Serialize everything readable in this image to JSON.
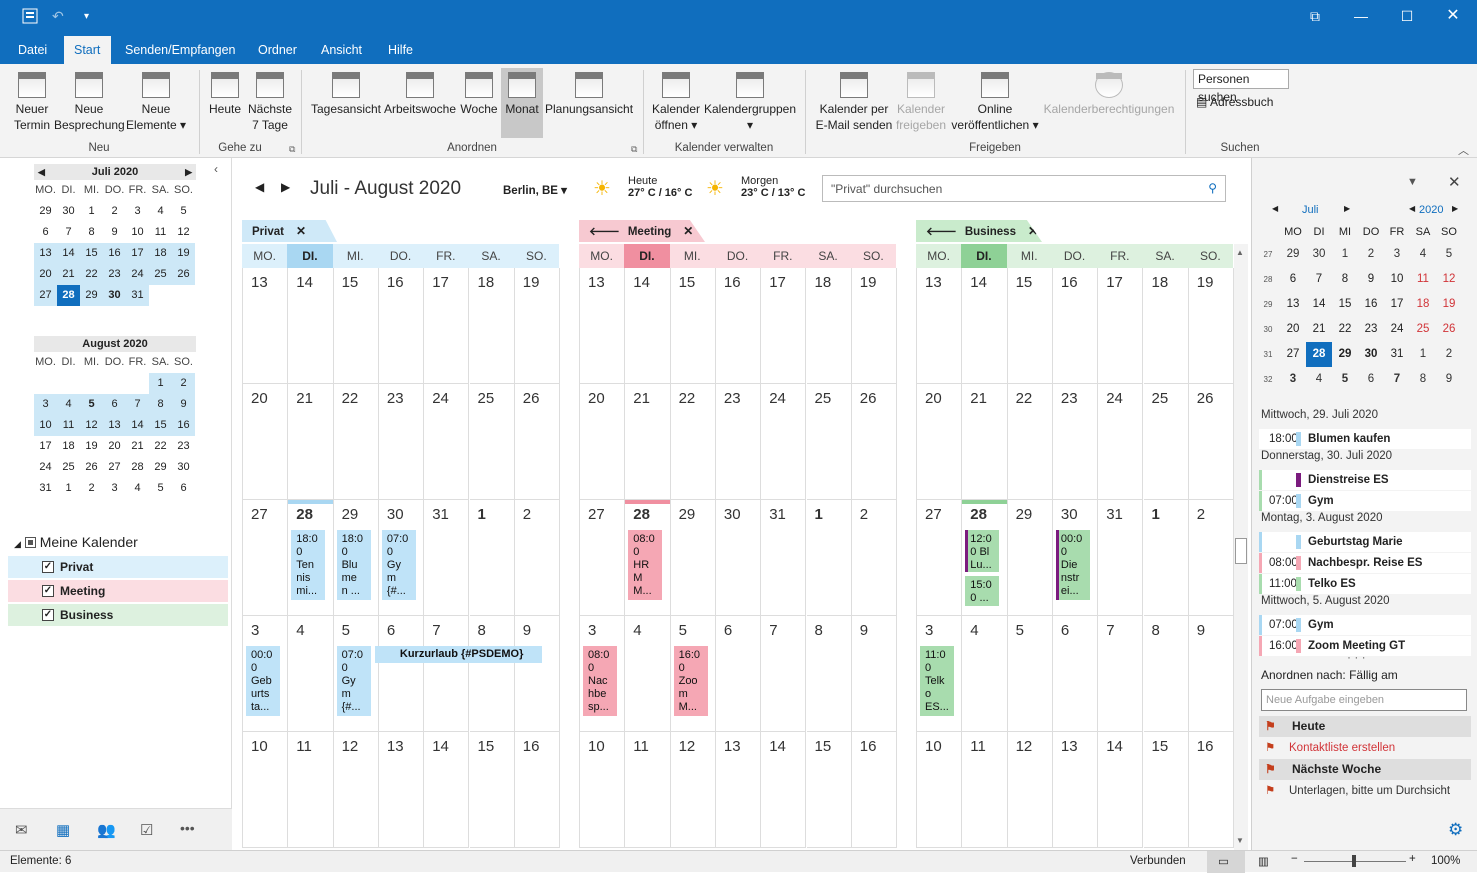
{
  "titlebar": {
    "icons": [
      "save-icon",
      "undo-icon",
      "customize-icon"
    ]
  },
  "tabs": [
    "Datei",
    "Start",
    "Senden/Empfangen",
    "Ordner",
    "Ansicht",
    "Hilfe"
  ],
  "ribbon": {
    "neu": {
      "termin": "Neuer",
      "termin2": "Termin",
      "besprechung": "Neue",
      "besprechung2": "Besprechung",
      "elemente": "Neue",
      "elemente2": "Elemente",
      "group": "Neu"
    },
    "gehezu": {
      "heute": "Heute",
      "naechste": "Nächste",
      "naechste2": "7 Tage",
      "group": "Gehe zu"
    },
    "anordnen": {
      "tag": "Tagesansicht",
      "arbeitswoche": "Arbeitswoche",
      "woche": "Woche",
      "monat": "Monat",
      "planung": "Planungsansicht",
      "group": "Anordnen"
    },
    "verwalten": {
      "oeffnen": "Kalender",
      "oeffnen2": "öffnen",
      "gruppen": "Kalendergruppen",
      "group": "Kalender verwalten"
    },
    "freigeben": {
      "email": "Kalender per",
      "email2": "E-Mail senden",
      "freigeben": "Kalender",
      "freigeben2": "freigeben",
      "online": "Online",
      "online2": "veröffentlichen",
      "berechtigungen": "Kalenderberechtigungen",
      "group": "Freigeben"
    },
    "suchen": {
      "personen": "Personen suchen",
      "adressbuch": "Adressbuch",
      "group": "Suchen"
    }
  },
  "leftpane": {
    "july": {
      "title": "Juli 2020",
      "days": [
        "MO.",
        "DI.",
        "MI.",
        "DO.",
        "FR.",
        "SA.",
        "SO."
      ],
      "rows": [
        [
          "29",
          "30",
          "1",
          "2",
          "3",
          "4",
          "5"
        ],
        [
          "6",
          "7",
          "8",
          "9",
          "10",
          "11",
          "12"
        ],
        [
          "13",
          "14",
          "15",
          "16",
          "17",
          "18",
          "19"
        ],
        [
          "20",
          "21",
          "22",
          "23",
          "24",
          "25",
          "26"
        ],
        [
          "27",
          "28",
          "29",
          "30",
          "31",
          "",
          ""
        ]
      ]
    },
    "august": {
      "title": "August 2020",
      "days": [
        "MO.",
        "DI.",
        "MI.",
        "DO.",
        "FR.",
        "SA.",
        "SO."
      ],
      "rows": [
        [
          "",
          "",
          "",
          "",
          "",
          "1",
          "2"
        ],
        [
          "3",
          "4",
          "5",
          "6",
          "7",
          "8",
          "9"
        ],
        [
          "10",
          "11",
          "12",
          "13",
          "14",
          "15",
          "16"
        ],
        [
          "17",
          "18",
          "19",
          "20",
          "21",
          "22",
          "23"
        ],
        [
          "24",
          "25",
          "26",
          "27",
          "28",
          "29",
          "30"
        ],
        [
          "31",
          "1",
          "2",
          "3",
          "4",
          "5",
          "6"
        ]
      ]
    },
    "mycal": "Meine Kalender",
    "calendars": [
      {
        "name": "Privat",
        "color": "#dcf0fb"
      },
      {
        "name": "Meeting",
        "color": "#fbdde2"
      },
      {
        "name": "Business",
        "color": "#ddf1df"
      }
    ]
  },
  "main": {
    "range": "Juli - August 2020",
    "location": "Berlin, BE",
    "today_label": "Heute",
    "today_temp": "27° C / 16° C",
    "tomorrow_label": "Morgen",
    "tomorrow_temp": "23° C / 13° C",
    "search_placeholder": "\"Privat\" durchsuchen",
    "days": [
      "MO.",
      "DI.",
      "MI.",
      "DO.",
      "FR.",
      "SA.",
      "SO."
    ],
    "weeks": [
      [
        "13",
        "14",
        "15",
        "16",
        "17",
        "18",
        "19"
      ],
      [
        "20",
        "21",
        "22",
        "23",
        "24",
        "25",
        "26"
      ],
      [
        "27",
        "28",
        "29",
        "30",
        "31",
        "1",
        "2"
      ],
      [
        "3",
        "4",
        "5",
        "6",
        "7",
        "8",
        "9"
      ],
      [
        "10",
        "11",
        "12",
        "13",
        "14",
        "15",
        "16"
      ]
    ],
    "calendars": [
      {
        "name": "Privat",
        "tab": "#cfe9f8",
        "hdr": "#dcf0fb",
        "today": "#a9d7f2",
        "ev": "#bfe3f8",
        "bar": "#a9d7f2",
        "arrow": false,
        "events": [
          {
            "w": 2,
            "d": 1,
            "t": "18:0\n0\nTen\nnis\nmi..."
          },
          {
            "w": 2,
            "d": 2,
            "t": "18:0\n0\nBlu\nme\nn ..."
          },
          {
            "w": 2,
            "d": 3,
            "t": "07:0\n0\nGy\nm\n{#..."
          },
          {
            "w": 3,
            "d": 0,
            "t": "00:0\n0\nGeb\nurts\nta..."
          },
          {
            "w": 3,
            "d": 2,
            "t": "07:0\n0\nGy\nm\n{#..."
          }
        ],
        "allday": "Kurzurlaub {#PSDEMO}"
      },
      {
        "name": "Meeting",
        "tab": "#f7c9d1",
        "hdr": "#fbdde2",
        "today": "#f08fa0",
        "ev": "#f5a7b4",
        "bar": "#f08fa0",
        "arrow": true,
        "events": [
          {
            "w": 2,
            "d": 1,
            "t": "08:0\n0\nHR\nM\nM..."
          },
          {
            "w": 3,
            "d": 0,
            "t": "08:0\n0\nNac\nhbe\nsp..."
          },
          {
            "w": 3,
            "d": 2,
            "t": "16:0\n0\nZoo\nm\nM..."
          }
        ]
      },
      {
        "name": "Business",
        "tab": "#c9ebcc",
        "hdr": "#ddf1df",
        "today": "#8ed196",
        "ev": "#a8dcae",
        "bar": "#8ed196",
        "arrow": true,
        "events": [
          {
            "w": 2,
            "d": 1,
            "t": "12:0\n0 Bl\nLu...",
            "h": 42,
            "purple": true
          },
          {
            "w": 2,
            "d": 1,
            "t": "15:0\n0 ...",
            "off": 46,
            "h": 30
          },
          {
            "w": 2,
            "d": 3,
            "t": "00:0\n0\nDie\nnstr\nei...",
            "purple": true
          },
          {
            "w": 3,
            "d": 0,
            "t": "11:0\n0\nTelk\no\nES..."
          }
        ]
      }
    ]
  },
  "rightpane": {
    "month": "Juli",
    "year": "2020",
    "days": [
      "MO",
      "DI",
      "MI",
      "DO",
      "FR",
      "SA",
      "SO"
    ],
    "weeks": [
      {
        "kw": "27",
        "d": [
          "29",
          "30",
          "1",
          "2",
          "3",
          "4",
          "5"
        ]
      },
      {
        "kw": "28",
        "d": [
          "6",
          "7",
          "8",
          "9",
          "10",
          "11",
          "12"
        ]
      },
      {
        "kw": "29",
        "d": [
          "13",
          "14",
          "15",
          "16",
          "17",
          "18",
          "19"
        ]
      },
      {
        "kw": "30",
        "d": [
          "20",
          "21",
          "22",
          "23",
          "24",
          "25",
          "26"
        ]
      },
      {
        "kw": "31",
        "d": [
          "27",
          "28",
          "29",
          "30",
          "31",
          "1",
          "2"
        ]
      },
      {
        "kw": "32",
        "d": [
          "3",
          "4",
          "5",
          "6",
          "7",
          "8",
          "9"
        ]
      }
    ],
    "agenda": [
      {
        "hdr": "Mittwoch, 29. Juli 2020"
      },
      {
        "time": "18:00",
        "title": "Blumen kaufen",
        "color": "#a9d7f2"
      },
      {
        "hdr": "Donnerstag, 30. Juli 2020"
      },
      {
        "time": "",
        "title": "Dienstreise ES",
        "color": "#7b1b7e",
        "left": "#a8dcae"
      },
      {
        "time": "07:00",
        "title": "Gym",
        "color": "#a9d7f2",
        "left": "#a8dcae"
      },
      {
        "hdr": "Montag, 3. August 2020"
      },
      {
        "time": "",
        "title": "Geburtstag Marie",
        "color": "#a9d7f2",
        "left": "#a9d7f2"
      },
      {
        "time": "08:00",
        "title": "Nachbespr. Reise ES",
        "color": "#f5a7b4",
        "left": "#f5a7b4"
      },
      {
        "time": "11:00",
        "title": "Telko ES",
        "color": "#a8dcae",
        "left": "#a8dcae"
      },
      {
        "hdr": "Mittwoch, 5. August 2020"
      },
      {
        "time": "07:00",
        "title": "Gym",
        "color": "#a9d7f2",
        "left": "#a9d7f2"
      },
      {
        "time": "16:00",
        "title": "Zoom Meeting GT",
        "color": "#f5a7b4",
        "left": "#f5a7b4"
      }
    ],
    "dots": "· · ·",
    "sort": "Anordnen nach: Fällig am",
    "task_placeholder": "Neue Aufgabe eingeben",
    "tasks": [
      {
        "group": "Heute"
      },
      {
        "task": "Kontaktliste erstellen",
        "red": true
      },
      {
        "group": "Nächste Woche"
      },
      {
        "task": "Unterlagen, bitte um Durchsicht"
      }
    ]
  },
  "status": {
    "items": "Elemente: 6",
    "connected": "Verbunden",
    "zoom": "100%"
  }
}
